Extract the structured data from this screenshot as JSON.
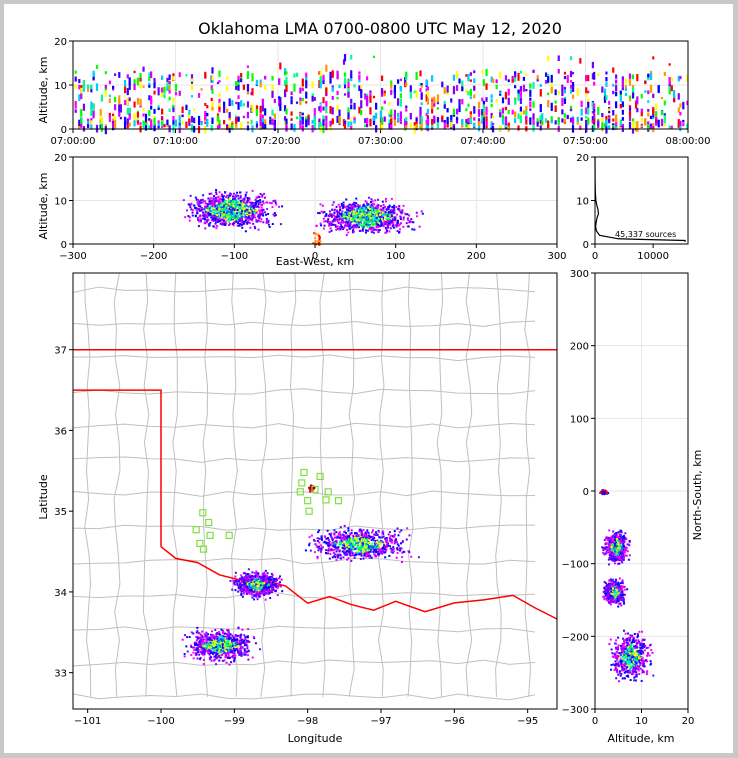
{
  "chart_data": [
    {
      "type": "scatter",
      "panel": "time-height",
      "title": "Oklahoma LMA 0700-0800 UTC May 12, 2020",
      "ylabel": "Altitude, km",
      "xlabel": "",
      "ylim": [
        0,
        20
      ],
      "yticks": [
        "0",
        "10",
        "20"
      ],
      "xticks": [
        "07:00:00",
        "07:10:00",
        "07:20:00",
        "07:30:00",
        "07:40:00",
        "07:50:00",
        "08:00:00"
      ],
      "grid": true,
      "colormap": "time (blue → green → yellow → red)"
    },
    {
      "type": "scatter",
      "panel": "east-west-height",
      "ylabel": "Altitude, km",
      "xlabel": "East-West, km",
      "xlim": [
        -300,
        300
      ],
      "ylim": [
        0,
        20
      ],
      "xticks": [
        "−300",
        "−200",
        "−100",
        "0",
        "100",
        "200",
        "300"
      ],
      "yticks": [
        "0",
        "10",
        "20"
      ],
      "grid": true,
      "clusters": [
        {
          "x_range": [
            -175,
            -35
          ],
          "z_range": [
            2,
            14
          ]
        },
        {
          "x_range": [
            -10,
            135
          ],
          "z_range": [
            1,
            12
          ]
        }
      ]
    },
    {
      "type": "line",
      "panel": "altitude-histogram",
      "xlim": [
        0,
        16000
      ],
      "ylim": [
        0,
        20
      ],
      "xticks": [
        "0",
        "10000"
      ],
      "yticks": [
        "0",
        "10",
        "20"
      ],
      "annotation": "45,337 sources",
      "source_count": 45337,
      "profile": [
        [
          0,
          20
        ],
        [
          20,
          15
        ],
        [
          60,
          12
        ],
        [
          150,
          10
        ],
        [
          300,
          9
        ],
        [
          500,
          8
        ],
        [
          600,
          7
        ],
        [
          350,
          6
        ],
        [
          200,
          5
        ],
        [
          100,
          4
        ],
        [
          250,
          3
        ],
        [
          800,
          2
        ],
        [
          4000,
          1.2
        ],
        [
          15500,
          0.8
        ],
        [
          15500,
          0.5
        ]
      ]
    },
    {
      "type": "scatter",
      "panel": "plan-view",
      "xlabel": "Longitude",
      "ylabel": "Latitude",
      "xlim": [
        -101.2,
        -94.6
      ],
      "ylim": [
        32.55,
        37.95
      ],
      "xticks": [
        "−101",
        "−100",
        "−99",
        "−98",
        "−97",
        "−96",
        "−95"
      ],
      "yticks": [
        "33",
        "34",
        "35",
        "36",
        "37"
      ],
      "state_border_color": "#ff0000",
      "county_line_color": "#c0c0c0",
      "station_color": "#80e040",
      "stations": [
        [
          -98.05,
          35.48
        ],
        [
          -97.83,
          35.43
        ],
        [
          -98.08,
          35.35
        ],
        [
          -97.9,
          35.27
        ],
        [
          -98.1,
          35.24
        ],
        [
          -97.72,
          35.24
        ],
        [
          -97.75,
          35.14
        ],
        [
          -97.58,
          35.13
        ],
        [
          -98.0,
          35.13
        ],
        [
          -97.98,
          35.0
        ],
        [
          -99.43,
          34.98
        ],
        [
          -99.35,
          34.86
        ],
        [
          -99.52,
          34.77
        ],
        [
          -99.33,
          34.7
        ],
        [
          -99.07,
          34.7
        ],
        [
          -99.47,
          34.6
        ],
        [
          -99.42,
          34.53
        ]
      ],
      "clusters": [
        {
          "lon_range": [
            -98.2,
            -96.4
          ],
          "lat_range": [
            34.35,
            34.85
          ]
        },
        {
          "lon_range": [
            -99.1,
            -98.3
          ],
          "lat_range": [
            33.9,
            34.3
          ]
        },
        {
          "lon_range": [
            -99.8,
            -98.6
          ],
          "lat_range": [
            33.1,
            33.6
          ]
        },
        {
          "lon_range": [
            -98.0,
            -97.9
          ],
          "lat_range": [
            35.23,
            35.35
          ]
        }
      ]
    },
    {
      "type": "scatter",
      "panel": "north-south-height",
      "xlabel": "Altitude, km",
      "ylabel": "North-South, km",
      "xlim": [
        0,
        20
      ],
      "ylim": [
        -300,
        300
      ],
      "xticks": [
        "0",
        "10",
        "20"
      ],
      "yticks": [
        "−300",
        "−200",
        "−100",
        "0",
        "100",
        "200",
        "300"
      ],
      "grid": true,
      "clusters": [
        {
          "z_range": [
            1,
            8
          ],
          "y_range": [
            -105,
            -48
          ]
        },
        {
          "z_range": [
            1,
            7
          ],
          "y_range": [
            -160,
            -115
          ]
        },
        {
          "z_range": [
            2,
            13
          ],
          "y_range": [
            -270,
            -185
          ]
        },
        {
          "z_range": [
            0.5,
            3
          ],
          "y_range": [
            -5,
            5
          ]
        }
      ]
    }
  ]
}
